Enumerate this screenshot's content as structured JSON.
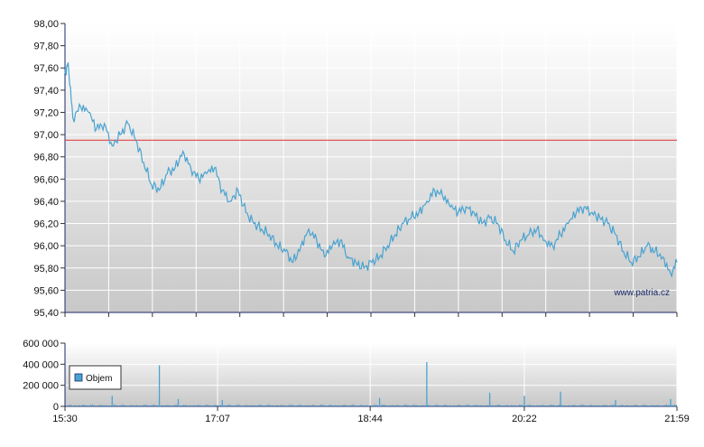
{
  "colors": {
    "price_line": "#4aa3d0",
    "reference_line": "#e03030",
    "volume_bar": "#4aa3d0",
    "plot_bg_top": "#ffffff",
    "plot_bg_bottom": "#c8c8c8",
    "axis": "#1a2a6a"
  },
  "watermark": "www.patria.cz",
  "chart_data": [
    {
      "type": "line",
      "name": "price",
      "y_ticks": [
        "98,00",
        "97,80",
        "97,60",
        "97,40",
        "97,20",
        "97,00",
        "96,80",
        "96,60",
        "96,40",
        "96,20",
        "96,00",
        "95,80",
        "95,60",
        "95,40"
      ],
      "ylim": [
        95.4,
        98.0
      ],
      "xlim": [
        "15:30",
        "21:59"
      ],
      "reference_line": 96.95,
      "x": [
        "15:30",
        "15:32",
        "15:35",
        "15:40",
        "15:45",
        "15:50",
        "15:55",
        "16:00",
        "16:05",
        "16:10",
        "16:15",
        "16:20",
        "16:25",
        "16:30",
        "16:35",
        "16:40",
        "16:45",
        "16:50",
        "16:55",
        "17:00",
        "17:05",
        "17:10",
        "17:15",
        "17:20",
        "17:25",
        "17:30",
        "17:35",
        "17:40",
        "17:45",
        "17:50",
        "17:55",
        "18:00",
        "18:05",
        "18:10",
        "18:15",
        "18:20",
        "18:25",
        "18:30",
        "18:35",
        "18:40",
        "18:45",
        "18:50",
        "18:55",
        "19:00",
        "19:05",
        "19:10",
        "19:15",
        "19:20",
        "19:25",
        "19:30",
        "19:35",
        "19:40",
        "19:45",
        "19:50",
        "19:55",
        "20:00",
        "20:05",
        "20:10",
        "20:15",
        "20:20",
        "20:25",
        "20:30",
        "20:35",
        "20:40",
        "20:45",
        "20:50",
        "20:55",
        "21:00",
        "21:05",
        "21:10",
        "21:15",
        "21:20",
        "21:25",
        "21:30",
        "21:35",
        "21:40",
        "21:45",
        "21:50",
        "21:55",
        "21:59"
      ],
      "y": [
        97.55,
        97.65,
        97.15,
        97.25,
        97.2,
        97.05,
        97.1,
        96.9,
        97.0,
        97.1,
        96.95,
        96.75,
        96.55,
        96.5,
        96.65,
        96.7,
        96.85,
        96.7,
        96.6,
        96.65,
        96.7,
        96.5,
        96.4,
        96.5,
        96.3,
        96.2,
        96.15,
        96.1,
        96.0,
        95.95,
        95.85,
        96.0,
        96.15,
        96.05,
        95.9,
        96.0,
        96.05,
        95.9,
        95.85,
        95.8,
        95.85,
        95.9,
        96.0,
        96.1,
        96.2,
        96.25,
        96.3,
        96.4,
        96.5,
        96.45,
        96.35,
        96.3,
        96.35,
        96.3,
        96.2,
        96.25,
        96.2,
        96.05,
        95.95,
        96.05,
        96.1,
        96.15,
        96.05,
        96.0,
        96.1,
        96.2,
        96.3,
        96.35,
        96.3,
        96.25,
        96.2,
        96.1,
        95.95,
        95.85,
        95.9,
        96.0,
        95.95,
        95.9,
        95.75,
        95.85
      ]
    },
    {
      "type": "bar",
      "name": "volume",
      "legend": "Objem",
      "y_ticks": [
        "600 000",
        "400 000",
        "200 000",
        "0"
      ],
      "ylim": [
        0,
        600000
      ],
      "x_ticks": [
        "15:30",
        "17:07",
        "18:44",
        "20:22",
        "21:59"
      ],
      "spikes": [
        {
          "time": "16:00",
          "value": 100000
        },
        {
          "time": "16:30",
          "value": 390000
        },
        {
          "time": "16:42",
          "value": 70000
        },
        {
          "time": "17:10",
          "value": 60000
        },
        {
          "time": "18:50",
          "value": 80000
        },
        {
          "time": "19:20",
          "value": 420000
        },
        {
          "time": "20:00",
          "value": 130000
        },
        {
          "time": "20:22",
          "value": 100000
        },
        {
          "time": "20:45",
          "value": 140000
        },
        {
          "time": "21:20",
          "value": 60000
        },
        {
          "time": "21:55",
          "value": 70000
        }
      ],
      "baseline": 20000
    }
  ]
}
